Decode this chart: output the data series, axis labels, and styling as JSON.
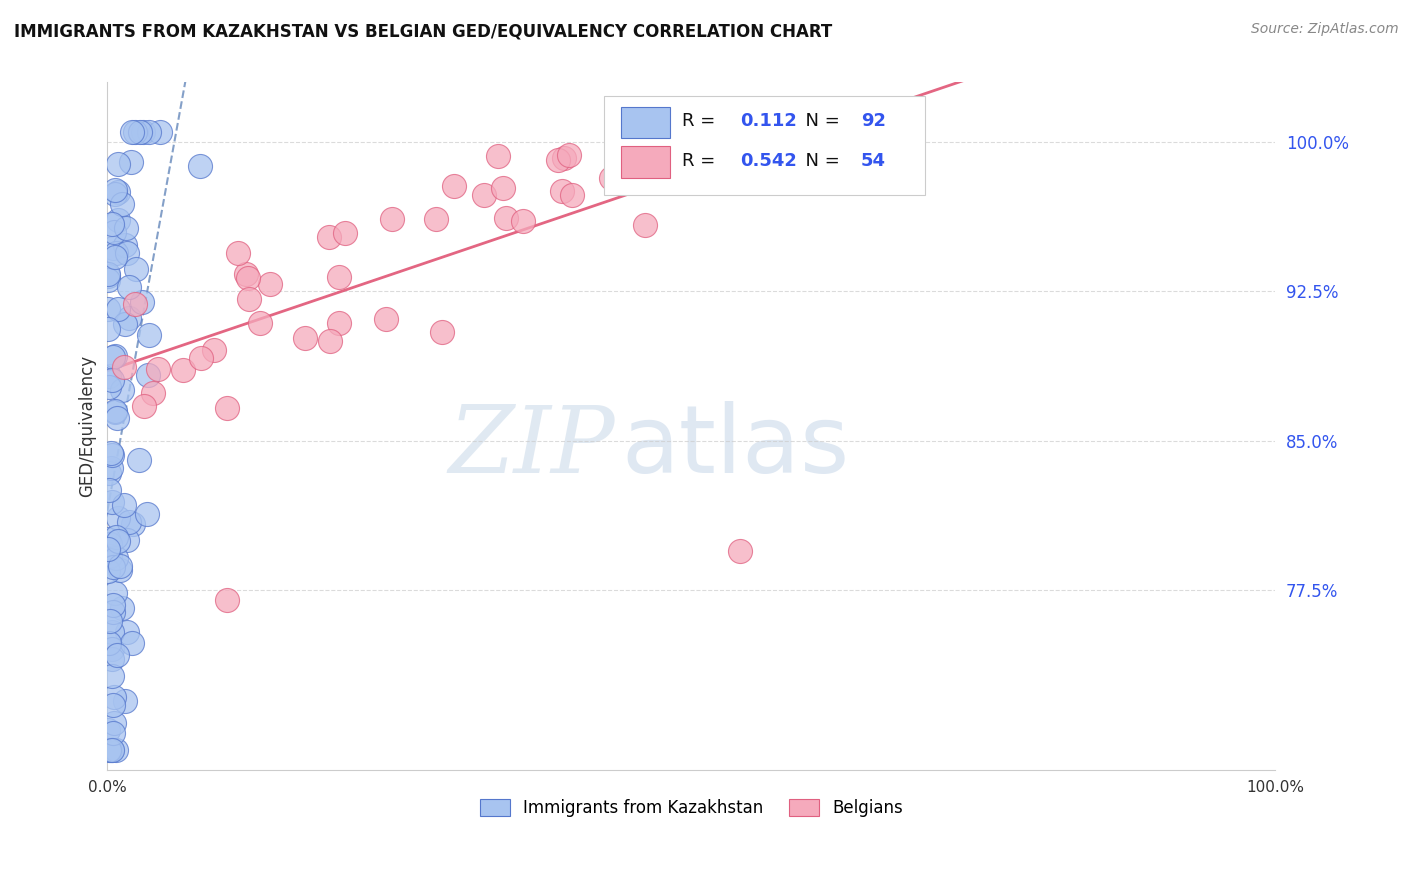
{
  "title": "IMMIGRANTS FROM KAZAKHSTAN VS BELGIAN GED/EQUIVALENCY CORRELATION CHART",
  "source_text": "Source: ZipAtlas.com",
  "ylabel": "GED/Equivalency",
  "xmin": 0.0,
  "xmax": 1.0,
  "ymin": 0.685,
  "ymax": 1.03,
  "yticks": [
    0.775,
    0.85,
    0.925,
    1.0
  ],
  "ytick_labels": [
    "77.5%",
    "85.0%",
    "92.5%",
    "100.0%"
  ],
  "blue_color": "#A8C4F0",
  "pink_color": "#F5AABC",
  "blue_edge": "#5577CC",
  "pink_edge": "#E06080",
  "trend_blue_color": "#6688BB",
  "trend_pink_color": "#E05575",
  "legend_blue_label": "Immigrants from Kazakhstan",
  "legend_pink_label": "Belgians",
  "R_blue": "0.112",
  "N_blue": "92",
  "R_pink": "0.542",
  "N_pink": "54",
  "legend_R_color": "#000000",
  "legend_val_color": "#3355EE",
  "right_axis_color": "#3355EE",
  "grid_color": "#CCCCCC",
  "blue_scatter_seed": 77,
  "pink_scatter_seed": 42
}
